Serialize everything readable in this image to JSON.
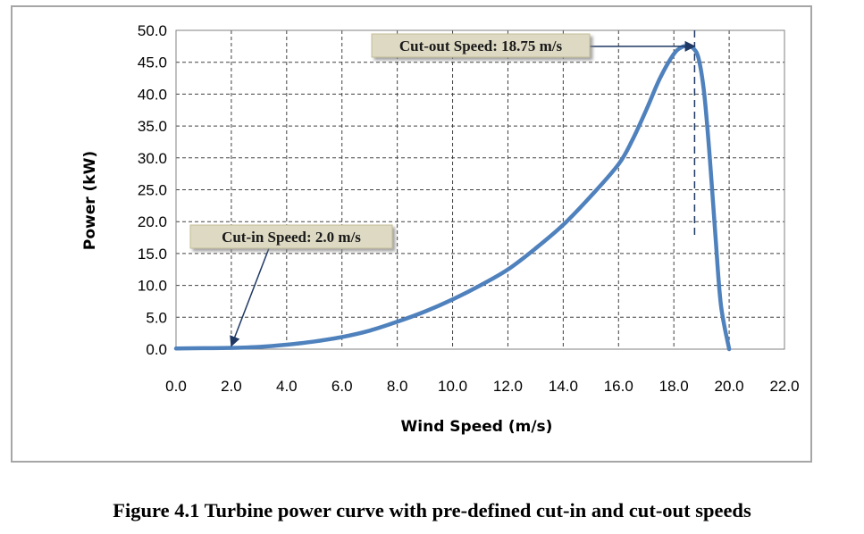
{
  "chart_data": {
    "type": "line",
    "title": "",
    "xlabel": "Wind Speed (m/s)",
    "ylabel": "Power (kW)",
    "xlim": [
      0,
      22
    ],
    "ylim": [
      0,
      50
    ],
    "x_ticks": [
      "0.0",
      "2.0",
      "4.0",
      "6.0",
      "8.0",
      "10.0",
      "12.0",
      "14.0",
      "16.0",
      "18.0",
      "20.0",
      "22.0"
    ],
    "y_ticks": [
      "0.0",
      "5.0",
      "10.0",
      "15.0",
      "20.0",
      "25.0",
      "30.0",
      "35.0",
      "40.0",
      "45.0",
      "50.0"
    ],
    "grid": true,
    "series": [
      {
        "color": "#4f81bd",
        "x": [
          0,
          1,
          2,
          3,
          4,
          5,
          6,
          7,
          8,
          9,
          10,
          11,
          12,
          13,
          14,
          15,
          16,
          16.5,
          17,
          17.5,
          18,
          18.3,
          18.5,
          18.7,
          18.9,
          19.1,
          19.3,
          19.5,
          19.7,
          20.0
        ],
        "y": [
          0.1,
          0.15,
          0.2,
          0.35,
          0.7,
          1.2,
          1.9,
          2.9,
          4.3,
          5.9,
          7.8,
          10.0,
          12.5,
          15.8,
          19.5,
          24.0,
          29.0,
          32.8,
          37.5,
          42.5,
          46.3,
          47.4,
          47.5,
          47.2,
          45.5,
          40.0,
          30.0,
          18.0,
          7.0,
          0.0
        ]
      }
    ],
    "reference_lines": [
      {
        "type": "vertical-dashed",
        "x": 18.75,
        "y_range": [
          17.5,
          50
        ]
      }
    ],
    "annotations": [
      {
        "text": "Cut-out Speed: 18.75 m/s",
        "arrow_to": [
          18.75,
          47.5
        ]
      },
      {
        "text": "Cut-in Speed: 2.0 m/s",
        "arrow_to": [
          2.0,
          0.5
        ]
      }
    ]
  },
  "caption": "Figure 4.1 Turbine power curve with pre-defined cut-in and cut-out speeds"
}
